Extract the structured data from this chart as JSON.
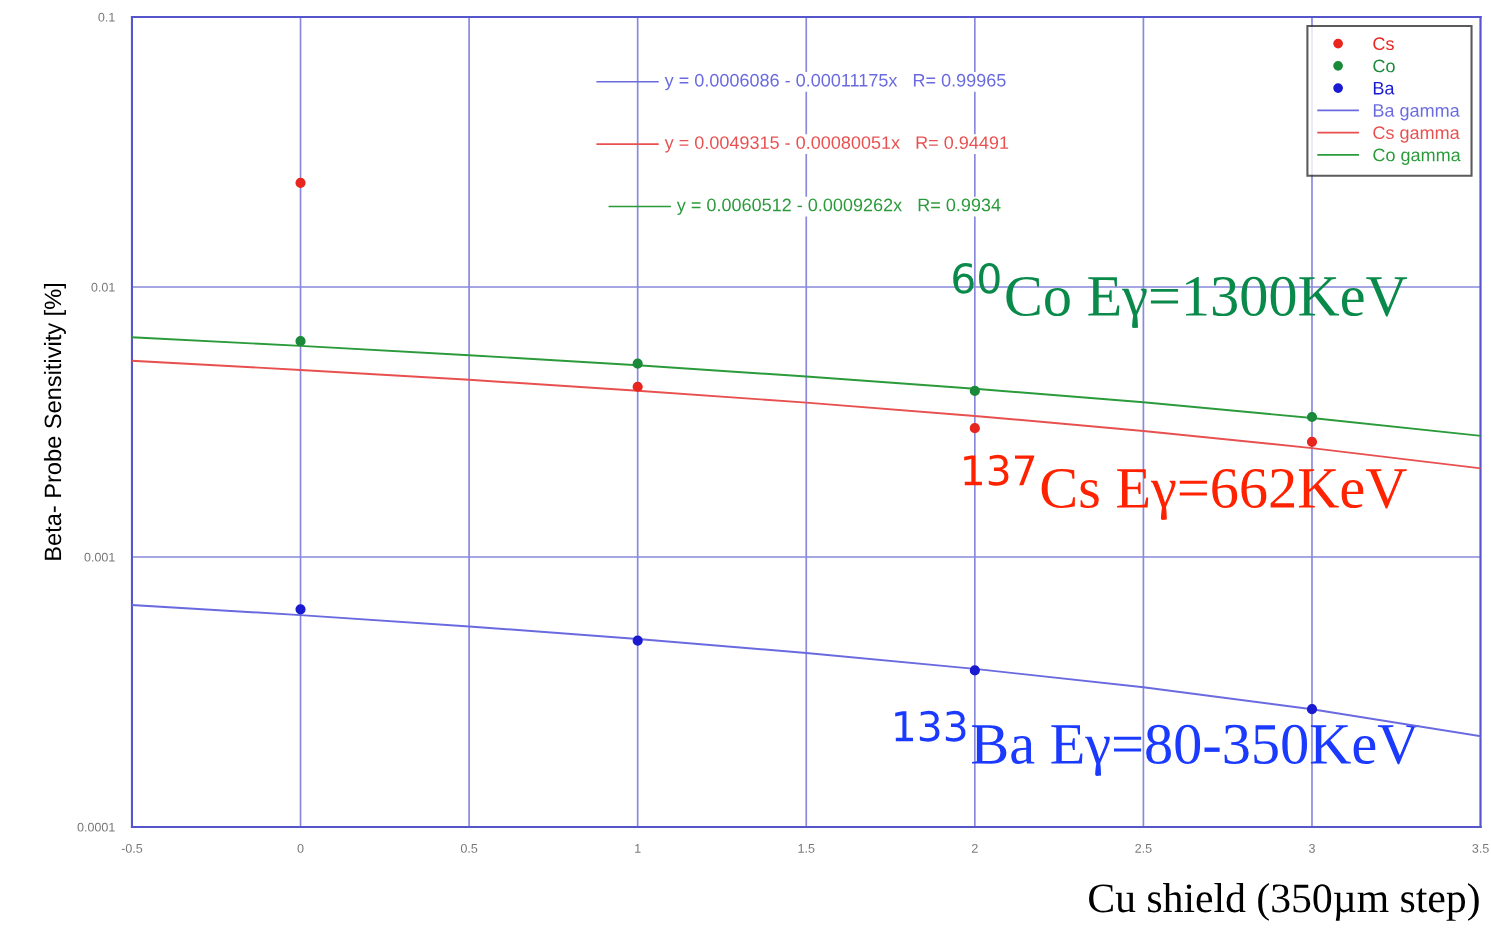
{
  "chart_data": {
    "type": "scatter",
    "xlabel": "Cu shield (350µm step)",
    "ylabel": "Beta- Probe Sensitivity [%]",
    "log": "y",
    "xlim": [
      -0.5,
      3.5
    ],
    "xticks": [
      -0.5,
      0,
      0.5,
      1,
      1.5,
      2,
      2.5,
      3,
      3.5
    ],
    "ylim": [
      0.0001,
      0.1
    ],
    "yticks": [
      0.0001,
      0.001,
      0.01,
      0.1
    ],
    "grid": true,
    "legend": "top right",
    "marker": "circle",
    "series": [
      {
        "name": "Cs",
        "color": "#e8251e",
        "x": [
          0,
          1,
          2,
          3
        ],
        "values": [
          0.0243,
          0.00427,
          0.003,
          0.00267
        ]
      },
      {
        "name": "Co",
        "color": "#1a8a3a",
        "x": [
          0,
          1,
          2,
          3
        ],
        "values": [
          0.0063,
          0.0052,
          0.00412,
          0.0033
        ]
      },
      {
        "name": "Ba",
        "color": "#1a1ad0",
        "x": [
          0,
          1,
          2,
          3
        ],
        "values": [
          0.00064,
          0.00049,
          0.00038,
          0.000273
        ]
      },
      {
        "name": "Ba gamma",
        "type": "line",
        "marker": "none",
        "color": "#6a6ae0",
        "x": [
          -0.5,
          0,
          0.5,
          1,
          1.5,
          2,
          2.5,
          3,
          3.5
        ],
        "values": [
          0.000664,
          0.000609,
          0.000553,
          0.000497,
          0.000441,
          0.000385,
          0.000329,
          0.000273,
          0.000217
        ]
      },
      {
        "name": "Cs gamma",
        "type": "line",
        "marker": "none",
        "color": "#e85050",
        "x": [
          -0.5,
          0,
          0.5,
          1,
          1.5,
          2,
          2.5,
          3,
          3.5
        ],
        "values": [
          0.00533,
          0.00493,
          0.00453,
          0.00413,
          0.00373,
          0.00333,
          0.00293,
          0.00253,
          0.00213
        ]
      },
      {
        "name": "Co gamma",
        "type": "line",
        "marker": "none",
        "color": "#2a9a3a",
        "x": [
          -0.5,
          0,
          0.5,
          1,
          1.5,
          2,
          2.5,
          3,
          3.5
        ],
        "values": [
          0.00651,
          0.00605,
          0.00559,
          0.00513,
          0.00466,
          0.0042,
          0.00374,
          0.00327,
          0.00281
        ]
      }
    ],
    "annotations": [
      "y = 0.0006086 - 0.00011175x   R= 0.99965",
      "y = 0.0049315 - 0.00080051x   R= 0.94491",
      "y = 0.0060512 - 0.0009262x   R= 0.9934",
      "$^{60}$Co Eγ=1300KeV",
      "$^{137}$Cs Eγ=662KeV",
      "$^{133}$Ba Eγ=80-350KeV"
    ]
  }
}
